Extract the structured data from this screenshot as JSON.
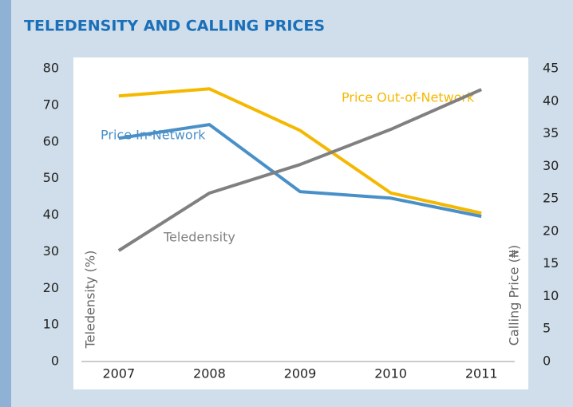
{
  "chart_data": {
    "type": "line",
    "title": "TELEDENSITY AND CALLING PRICES",
    "categories": [
      "2007",
      "2008",
      "2009",
      "2010",
      "2011"
    ],
    "ylabel": "Teledensity (%)",
    "y2label": "Calling Price (₦)",
    "ylim": [
      0,
      80
    ],
    "yticks": [
      0,
      10,
      20,
      30,
      40,
      50,
      60,
      70,
      80
    ],
    "y2lim": [
      0,
      45
    ],
    "y2ticks": [
      0,
      5,
      10,
      15,
      20,
      25,
      30,
      35,
      40,
      45
    ],
    "series": [
      {
        "name": "Price Out-of-Network",
        "color": "#f5b800",
        "axis": "y2",
        "values": [
          40.8,
          41.9,
          35.5,
          25.9,
          22.8
        ]
      },
      {
        "name": "Price In-Network",
        "color": "#4a90c8",
        "axis": "y2",
        "values": [
          34.3,
          36.4,
          26.1,
          25.1,
          22.3
        ]
      },
      {
        "name": "Teledensity",
        "color": "#808080",
        "values": [
          30.3,
          46,
          53.8,
          63.4,
          74.3
        ]
      }
    ]
  }
}
